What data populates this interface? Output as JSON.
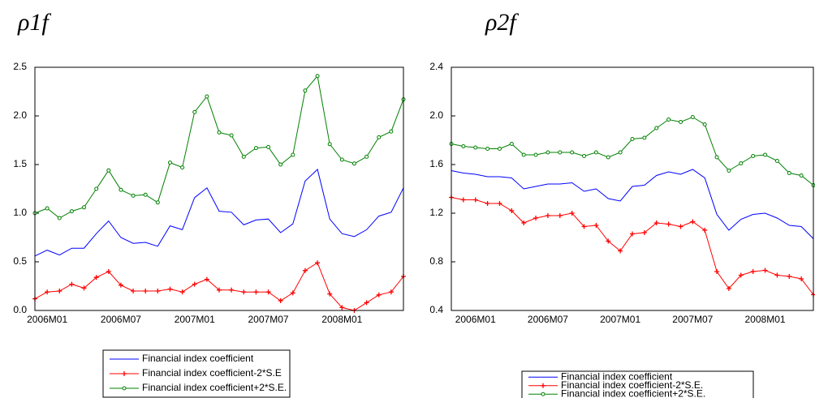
{
  "chart_data": [
    {
      "type": "line",
      "title": "ρ1f",
      "categories": [
        null,
        "2006M01",
        null,
        null,
        null,
        null,
        null,
        "2006M07",
        null,
        null,
        null,
        null,
        null,
        "2007M01",
        null,
        null,
        null,
        null,
        null,
        "2007M07",
        null,
        null,
        null,
        null,
        null,
        "2008M01",
        null,
        null,
        null,
        null,
        null
      ],
      "series": [
        {
          "name": "Financial index coefficient",
          "color": "#0000ff",
          "marker": "none",
          "values": [
            0.56,
            0.62,
            0.57,
            0.64,
            0.64,
            0.79,
            0.92,
            0.75,
            0.69,
            0.7,
            0.66,
            0.87,
            0.83,
            1.16,
            1.26,
            1.02,
            1.01,
            0.88,
            0.93,
            0.94,
            0.8,
            0.89,
            1.33,
            1.45,
            0.94,
            0.79,
            0.76,
            0.83,
            0.97,
            1.01,
            1.26
          ]
        },
        {
          "name": "Financial index coefficient-2*S.E",
          "color": "#ff0000",
          "marker": "plus",
          "values": [
            0.12,
            0.19,
            0.2,
            0.27,
            0.23,
            0.34,
            0.4,
            0.26,
            0.2,
            0.2,
            0.2,
            0.22,
            0.19,
            0.27,
            0.32,
            0.21,
            0.21,
            0.19,
            0.19,
            0.19,
            0.1,
            0.18,
            0.41,
            0.49,
            0.17,
            0.03,
            0.0,
            0.08,
            0.16,
            0.19,
            0.35
          ]
        },
        {
          "name": "Financial index coefficient+2*S.E.",
          "color": "#008000",
          "marker": "circle",
          "values": [
            1.0,
            1.05,
            0.95,
            1.02,
            1.06,
            1.25,
            1.44,
            1.24,
            1.18,
            1.19,
            1.11,
            1.52,
            1.47,
            2.04,
            2.2,
            1.83,
            1.8,
            1.58,
            1.67,
            1.68,
            1.5,
            1.6,
            2.26,
            2.41,
            1.71,
            1.55,
            1.51,
            1.58,
            1.78,
            1.84,
            2.17
          ]
        }
      ],
      "ylim": [
        0,
        2.5
      ],
      "yticks": [
        {
          "value": 0,
          "label": "0.0"
        },
        0.5,
        {
          "value": 1,
          "label": "1.0"
        },
        1.5,
        {
          "value": 2,
          "label": "2.0"
        },
        2.5
      ]
    },
    {
      "type": "line",
      "title": "ρ2f",
      "categories": [
        null,
        null,
        "2006M01",
        null,
        null,
        null,
        null,
        null,
        "2006M07",
        null,
        null,
        null,
        null,
        null,
        "2007M01",
        null,
        null,
        null,
        null,
        null,
        "2007M07",
        null,
        null,
        null,
        null,
        null,
        "2008M01",
        null,
        null,
        null,
        null
      ],
      "series": [
        {
          "name": "Financial index coefficient",
          "color": "#0000ff",
          "marker": "none",
          "values": [
            1.55,
            1.53,
            1.52,
            1.5,
            1.5,
            1.49,
            1.4,
            1.42,
            1.44,
            1.44,
            1.45,
            1.38,
            1.4,
            1.32,
            1.3,
            1.42,
            1.43,
            1.51,
            1.54,
            1.52,
            1.56,
            1.49,
            1.19,
            1.06,
            1.15,
            1.19,
            1.2,
            1.16,
            1.1,
            1.09,
            0.99
          ]
        },
        {
          "name": "Financial index coefficient-2*S.E.",
          "color": "#ff0000",
          "marker": "plus",
          "values": [
            1.33,
            1.31,
            1.31,
            1.28,
            1.28,
            1.22,
            1.12,
            1.16,
            1.18,
            1.18,
            1.2,
            1.09,
            1.1,
            0.97,
            0.89,
            1.03,
            1.04,
            1.12,
            1.11,
            1.09,
            1.13,
            1.06,
            0.72,
            0.58,
            0.69,
            0.72,
            0.73,
            0.69,
            0.68,
            0.66,
            0.53
          ]
        },
        {
          "name": "Financial index coefficient+2*S.E.",
          "color": "#008000",
          "marker": "circle",
          "values": [
            1.77,
            1.75,
            1.74,
            1.73,
            1.73,
            1.77,
            1.68,
            1.68,
            1.7,
            1.7,
            1.7,
            1.67,
            1.7,
            1.66,
            1.7,
            1.81,
            1.82,
            1.9,
            1.97,
            1.95,
            1.99,
            1.93,
            1.66,
            1.55,
            1.61,
            1.67,
            1.68,
            1.63,
            1.53,
            1.51,
            1.43
          ]
        }
      ],
      "ylim": [
        0.4,
        2.4
      ],
      "yticks": [
        0.4,
        0.8,
        1.2,
        1.6,
        {
          "value": 2,
          "label": "2.0"
        },
        2.4
      ]
    }
  ]
}
